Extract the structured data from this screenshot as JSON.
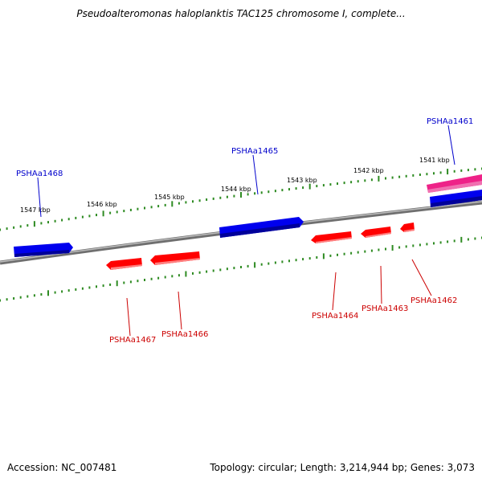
{
  "title": "Pseudoalteromonas haloplanktis TAC125 chromosome I, complete...",
  "footer": {
    "accession": "Accession: NC_007481",
    "summary": "Topology: circular; Length: 3,214,944 bp; Genes: 3,073"
  },
  "ticks": [
    {
      "label": "1541 kbp"
    },
    {
      "label": "1542 kbp"
    },
    {
      "label": "1543 kbp"
    },
    {
      "label": "1544 kbp"
    },
    {
      "label": "1545 kbp"
    },
    {
      "label": "1546 kbp"
    },
    {
      "label": "1547 kbp"
    }
  ],
  "genes_forward": [
    {
      "name": "PSHAa1468",
      "color": "#0000cc"
    },
    {
      "name": "PSHAa1465",
      "color": "#0000cc"
    },
    {
      "name": "PSHAa1461",
      "color": "#0000cc"
    }
  ],
  "genes_reverse": [
    {
      "name": "PSHAa1467",
      "color": "#cc0000"
    },
    {
      "name": "PSHAa1466",
      "color": "#cc0000"
    },
    {
      "name": "PSHAa1464",
      "color": "#cc0000"
    },
    {
      "name": "PSHAa1463",
      "color": "#cc0000"
    },
    {
      "name": "PSHAa1462",
      "color": "#cc0000"
    }
  ],
  "colors": {
    "backbone": "#888888",
    "ticks": "#2e8b22",
    "forward_gene": "#0000ee",
    "reverse_gene": "#ff0000",
    "highlight_gene": "#ee2288"
  }
}
